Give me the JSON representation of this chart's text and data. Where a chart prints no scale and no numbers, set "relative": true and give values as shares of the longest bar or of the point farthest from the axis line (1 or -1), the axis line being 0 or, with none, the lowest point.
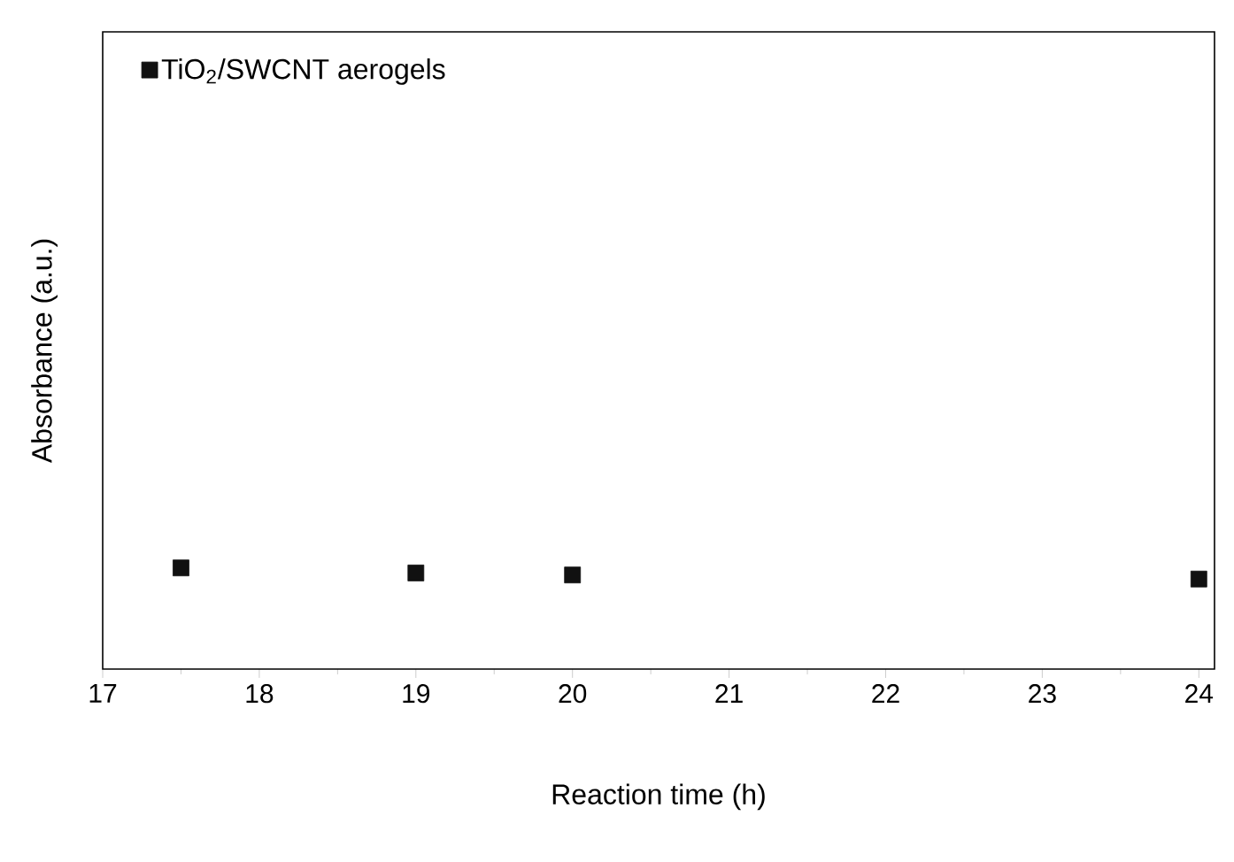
{
  "chart_data": {
    "type": "scatter",
    "xlabel": "Reaction time (h)",
    "ylabel": "Absorbance (a.u.)",
    "relative": true,
    "x": [
      17.5,
      19,
      20,
      24
    ],
    "xlim": [
      17,
      24.1
    ],
    "xticks": [
      17,
      18,
      19,
      20,
      21,
      22,
      23,
      24
    ],
    "series": [
      {
        "name": "TiO$_{2}$/SWCNT aerogels",
        "color": "#111111",
        "values": [
          1,
          0.95,
          0.93,
          0.89
        ]
      }
    ],
    "marker": "square",
    "legend": "top left",
    "grid": false
  }
}
